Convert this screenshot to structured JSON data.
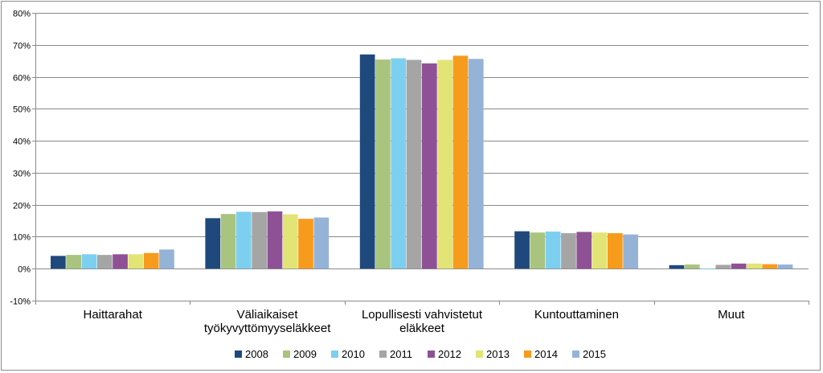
{
  "chart_data": {
    "type": "bar",
    "categories": [
      [
        "Haittarahat"
      ],
      [
        "Väliaikaiset",
        "työkyvyttömyyseläkkeet"
      ],
      [
        "Lopullisesti vahvistetut",
        "eläkkeet"
      ],
      [
        "Kuntouttaminen"
      ],
      [
        "Muut"
      ]
    ],
    "series": [
      {
        "name": "2008",
        "color": "#1f497d",
        "values": [
          4.0,
          15.8,
          67.0,
          11.7,
          1.1
        ]
      },
      {
        "name": "2009",
        "color": "#a9c47f",
        "values": [
          4.3,
          17.1,
          65.4,
          11.3,
          1.3
        ]
      },
      {
        "name": "2010",
        "color": "#7dcff0",
        "values": [
          4.5,
          17.8,
          65.8,
          11.6,
          -0.2
        ]
      },
      {
        "name": "2011",
        "color": "#a5a5a5",
        "values": [
          4.3,
          17.7,
          65.3,
          11.1,
          1.2
        ]
      },
      {
        "name": "2012",
        "color": "#8f5196",
        "values": [
          4.5,
          17.9,
          64.2,
          11.5,
          1.6
        ]
      },
      {
        "name": "2013",
        "color": "#e2e475",
        "values": [
          4.5,
          17.0,
          65.3,
          11.3,
          1.6
        ]
      },
      {
        "name": "2014",
        "color": "#f79b1d",
        "values": [
          4.9,
          15.6,
          66.6,
          11.1,
          1.4
        ]
      },
      {
        "name": "2015",
        "color": "#95b3d7",
        "values": [
          6.0,
          16.0,
          65.6,
          10.7,
          1.3
        ]
      }
    ],
    "ylim": [
      -10,
      80
    ],
    "yticks": [
      -10,
      0,
      10,
      20,
      30,
      40,
      50,
      60,
      70,
      80
    ],
    "ytick_suffix": "%",
    "grid": true,
    "legend_position": "bottom"
  }
}
